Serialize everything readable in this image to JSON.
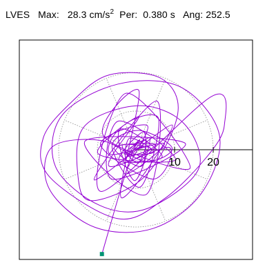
{
  "header": {
    "station": "LVES",
    "max_label": "Max:",
    "max_value": "28.3",
    "max_unit": "cm/s",
    "max_unit_exp": "2",
    "per_label": "Per:",
    "per_value": "0.380",
    "per_unit": "s",
    "ang_label": "Ang:",
    "ang_value": "252.5"
  },
  "colors": {
    "trace": "#9400d3",
    "frame": "#000000",
    "grid": "#888888",
    "end_marker": "#009473",
    "background": "#ffffff"
  },
  "chart_data": {
    "type": "line",
    "title": "",
    "xlabel": "",
    "ylabel": "",
    "units": "cm/s^2",
    "range_rings": [
      10,
      20
    ],
    "ring_labels": [
      "10",
      "20"
    ],
    "spokes": 8,
    "grid": true,
    "series": [
      {
        "values": [
          [
            -0.6,
            0.1
          ],
          [
            2.1,
            0.9
          ],
          [
            -1.8,
            -0.4
          ],
          [
            1.0,
            2.6
          ],
          [
            -2.0,
            -1.6
          ],
          [
            3.8,
            0.4
          ],
          [
            -3.5,
            1.2
          ],
          [
            0.5,
            -3.4
          ],
          [
            2.6,
            2.5
          ],
          [
            -3.0,
            -1.0
          ],
          [
            4.6,
            -0.6
          ],
          [
            -1.6,
            3.0
          ],
          [
            -2.2,
            -3.0
          ],
          [
            5.0,
            1.4
          ],
          [
            -5.6,
            0.6
          ],
          [
            1.4,
            -4.3
          ],
          [
            2.0,
            4.6
          ],
          [
            -4.4,
            -2.8
          ],
          [
            6.8,
            -1.8
          ],
          [
            -3.4,
            5.4
          ],
          [
            -6.6,
            -1.2
          ],
          [
            7.4,
            1.6
          ],
          [
            -2.6,
            -6.2
          ],
          [
            3.0,
            6.2
          ],
          [
            -9.2,
            1.4
          ],
          [
            4.4,
            -7.6
          ],
          [
            8.6,
            0.6
          ],
          [
            -7.0,
            -4.2
          ],
          [
            0.8,
            8.6
          ],
          [
            -9.8,
            -1.0
          ],
          [
            10.2,
            -2.6
          ],
          [
            -4.6,
            7.4
          ],
          [
            -6.2,
            -7.6
          ],
          [
            12.8,
            1.6
          ],
          [
            -13.2,
            2.2
          ],
          [
            2.6,
            -11.6
          ],
          [
            5.4,
            12.6
          ],
          [
            -10.8,
            -7.8
          ],
          [
            9.4,
            6.4
          ],
          [
            -3.8,
            -12.4
          ],
          [
            0.8,
            15.2
          ],
          [
            -8.4,
            3.6
          ],
          [
            14.0,
            -4.8
          ],
          [
            -2.6,
            14.6
          ],
          [
            -9.0,
            -10.8
          ],
          [
            19.6,
            13.8
          ],
          [
            22.9,
            6.4
          ],
          [
            18.4,
            -1.8
          ],
          [
            7.2,
            -12.8
          ],
          [
            -4.8,
            -17.8
          ],
          [
            -22.2,
            -7.2
          ],
          [
            -24.0,
            3.0
          ],
          [
            -16.4,
            12.6
          ],
          [
            -6.8,
            19.4
          ],
          [
            6.6,
            18.4
          ],
          [
            10.8,
            9.2
          ],
          [
            2.4,
            -6.8
          ],
          [
            -11.4,
            -13.2
          ],
          [
            -15.0,
            -6.8
          ],
          [
            -13.4,
            6.0
          ],
          [
            0.6,
            11.4
          ],
          [
            12.4,
            6.8
          ],
          [
            16.2,
            -5.0
          ],
          [
            3.0,
            -15.2
          ],
          [
            -9.4,
            -14.4
          ],
          [
            -20.8,
            -4.4
          ],
          [
            -19.2,
            8.8
          ],
          [
            -4.6,
            17.0
          ],
          [
            11.6,
            16.2
          ],
          [
            21.6,
            3.8
          ],
          [
            17.0,
            -11.2
          ],
          [
            4.4,
            -20.4
          ],
          [
            -10.8,
            -20.0
          ],
          [
            -22.4,
            -10.2
          ],
          [
            -21.8,
            0.6
          ],
          [
            -9.0,
            2.4
          ],
          [
            2.4,
            -3.0
          ],
          [
            9.4,
            0.4
          ],
          [
            0.8,
            5.0
          ],
          [
            -6.2,
            0.8
          ],
          [
            1.2,
            -9.6
          ],
          [
            5.8,
            8.2
          ],
          [
            -4.4,
            4.8
          ],
          [
            -0.4,
            -8.0
          ],
          [
            3.6,
            3.0
          ],
          [
            -2.8,
            -2.2
          ],
          [
            1.8,
            1.2
          ],
          [
            -1.0,
            -0.9
          ],
          [
            -8.8,
            -27.0
          ]
        ]
      }
    ]
  }
}
